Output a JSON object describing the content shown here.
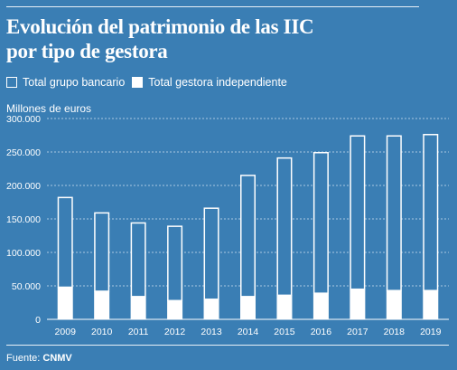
{
  "header": {
    "title_line1": "Evolución del patrimonio de las IIC",
    "title_line2": "por tipo de gestora"
  },
  "legend": {
    "bank_label": "Total grupo bancario",
    "indep_label": "Total gestora independiente"
  },
  "footer": {
    "source_prefix": "Fuente:",
    "source_name": "CNMV"
  },
  "colors": {
    "background": "#3a7eb4",
    "bank_series": "#3a7eb4",
    "independent_series": "#ffffff",
    "bar_outline": "#ffffff"
  },
  "chart_data": {
    "type": "bar",
    "stacked": true,
    "ylabel": "Millones de euros",
    "ylim": [
      0,
      300000
    ],
    "yticks": [
      0,
      50000,
      100000,
      150000,
      200000,
      250000,
      300000
    ],
    "ytick_labels": [
      "0",
      "50.000",
      "100.000",
      "150.000",
      "200.000",
      "250.000",
      "300.000"
    ],
    "grid": "horizontal dashed",
    "legend_position": "top-left",
    "categories": [
      "2009",
      "2010",
      "2011",
      "2012",
      "2013",
      "2014",
      "2015",
      "2016",
      "2017",
      "2018",
      "2019"
    ],
    "series": [
      {
        "name": "Total gestora independiente",
        "values": [
          48000,
          42000,
          34000,
          28000,
          30000,
          34000,
          36000,
          39000,
          45000,
          43000,
          43000
        ]
      },
      {
        "name": "Total grupo bancario",
        "values": [
          135000,
          118000,
          111000,
          112000,
          137000,
          182000,
          206000,
          211000,
          230000,
          232000,
          234000
        ]
      }
    ]
  }
}
